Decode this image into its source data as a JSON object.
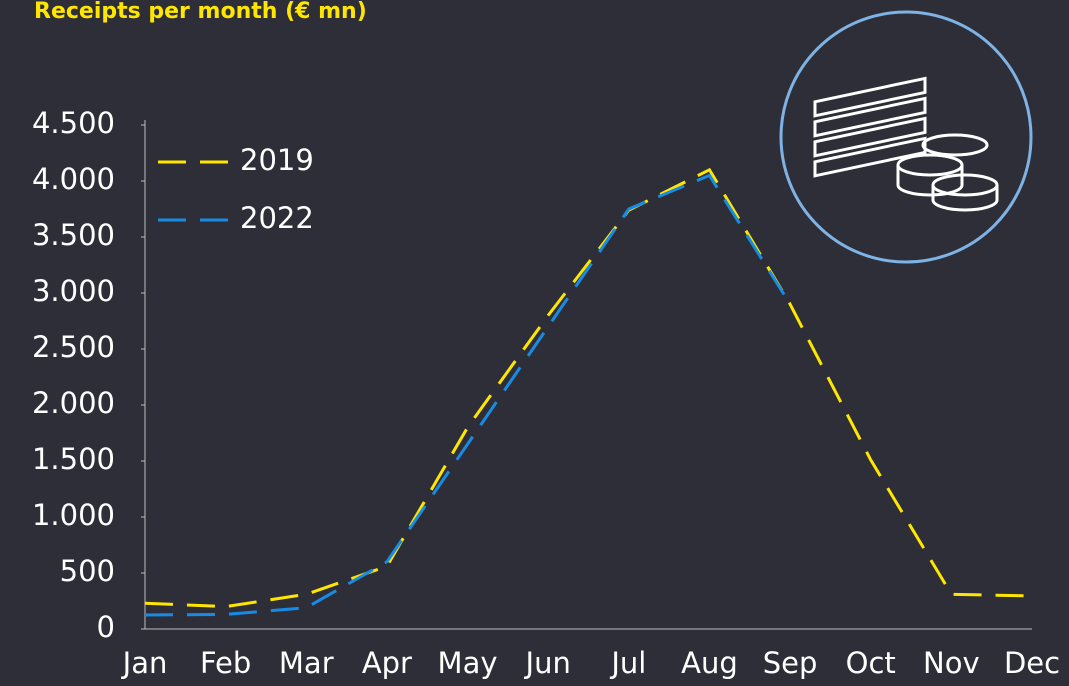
{
  "chart_data": {
    "type": "line",
    "title": "Receipts per month (€ mn)",
    "categories": [
      "Jan",
      "Feb",
      "Mar",
      "Apr",
      "May",
      "Jun",
      "Jul",
      "Aug",
      "Sep",
      "Oct",
      "Nov",
      "Dec"
    ],
    "series": [
      {
        "name": "2019",
        "color": "#ffe600",
        "values": [
          230,
          200,
          310,
          560,
          1800,
          2800,
          3740,
          4100,
          2900,
          1510,
          310,
          295
        ]
      },
      {
        "name": "2022",
        "color": "#188ce5",
        "values": [
          125,
          130,
          190,
          600,
          1650,
          2700,
          3750,
          4050,
          2900,
          null,
          null,
          null
        ]
      }
    ],
    "ylim": [
      0,
      4500
    ],
    "yticks": [
      0,
      500,
      {
        "value": 1000,
        "label": "1.000"
      },
      {
        "value": 1500,
        "label": "1.500"
      },
      {
        "value": 2000,
        "label": "2.000"
      },
      {
        "value": 2500,
        "label": "2.500"
      },
      {
        "value": 3000,
        "label": "3.000"
      },
      {
        "value": 3500,
        "label": "3.500"
      },
      {
        "value": 4000,
        "label": "4.000"
      },
      {
        "value": 4500,
        "label": "4.500"
      }
    ],
    "legend": "upper left",
    "grid": false
  }
}
